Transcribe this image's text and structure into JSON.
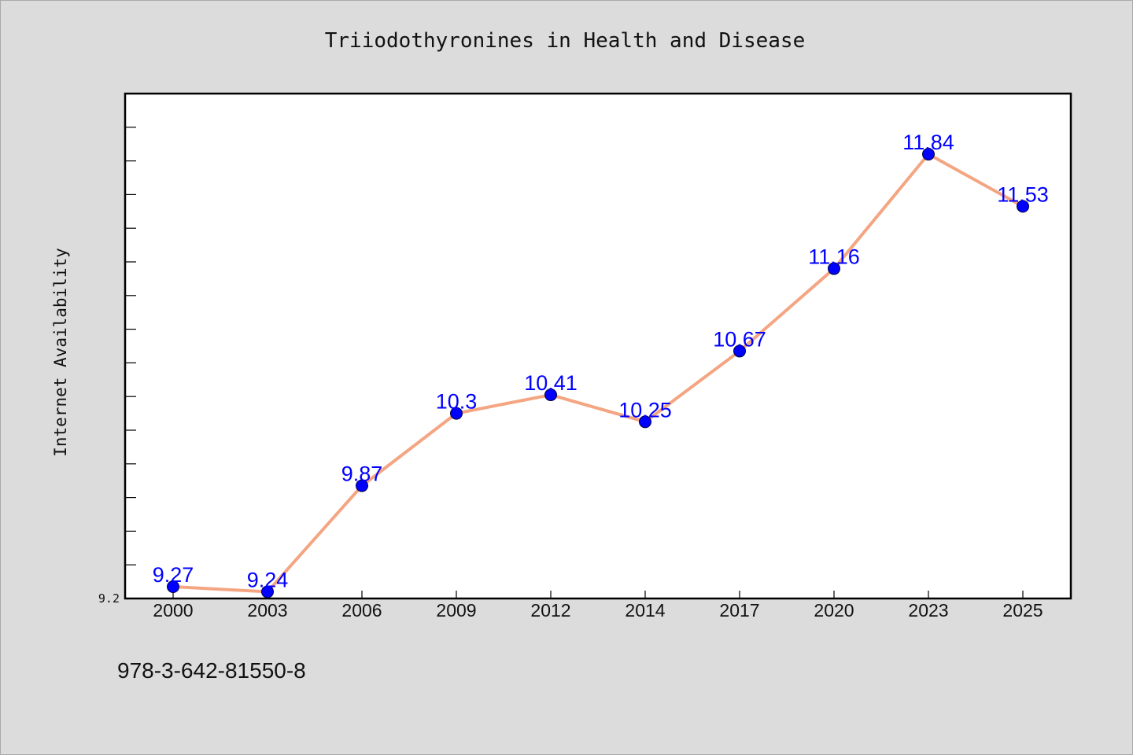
{
  "chart_data": {
    "type": "line",
    "title": "Triiodothyronines in Health and Disease",
    "xlabel": "",
    "ylabel": "Internet Availability",
    "categories": [
      "2000",
      "2003",
      "2006",
      "2009",
      "2012",
      "2014",
      "2017",
      "2020",
      "2023",
      "2025"
    ],
    "series": [
      {
        "values": [
          9.27,
          9.24,
          9.87,
          10.3,
          10.41,
          10.25,
          10.67,
          11.16,
          11.84,
          11.53
        ],
        "data_labels": [
          "9.27",
          "9.24",
          "9.87",
          "10.3",
          "10.41",
          "10.25",
          "10.67",
          "11.16",
          "11.84",
          "11.53"
        ],
        "line_color": "#f4a582",
        "marker_color": "#0000ff"
      }
    ],
    "ylim": [
      9.2,
      12.2
    ],
    "yticks_labeled": [
      "9.2"
    ],
    "grid": false,
    "legend": "none",
    "background": "#ffffff",
    "figure_background": "#dcdcdc"
  },
  "footer": {
    "isbn": "978-3-642-81550-8"
  }
}
